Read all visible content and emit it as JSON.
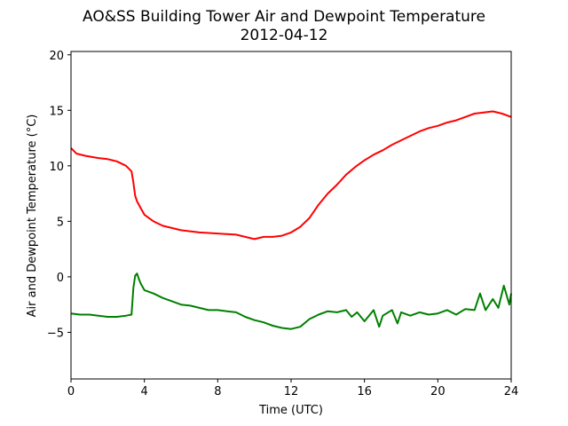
{
  "chart_data": {
    "type": "line",
    "title_line1": "AO&SS Building Tower Air and Dewpoint Temperature",
    "title_line2": "2012-04-12",
    "xlabel": "Time (UTC)",
    "ylabel": "Air and Dewpoint Temperature (°C)",
    "xlim": [
      0,
      24
    ],
    "ylim": [
      -9.2,
      20.3
    ],
    "x_ticks": [
      0,
      4,
      8,
      12,
      16,
      20,
      24
    ],
    "y_ticks": [
      -5,
      0,
      5,
      10,
      15,
      20
    ],
    "x_tick_labels": [
      "0",
      "4",
      "8",
      "12",
      "16",
      "20",
      "24"
    ],
    "y_tick_labels": [
      "−5",
      "0",
      "5",
      "10",
      "15",
      "20"
    ],
    "grid": false,
    "legend": "none",
    "series": [
      {
        "color": "#ff0000",
        "x": [
          0,
          0.3,
          0.8,
          1.5,
          2.0,
          2.5,
          3.0,
          3.3,
          3.4,
          3.5,
          3.6,
          3.8,
          4.0,
          4.5,
          5.0,
          5.5,
          6.0,
          6.5,
          7.0,
          7.5,
          8.0,
          8.5,
          9.0,
          9.5,
          10.0,
          10.5,
          11.0,
          11.5,
          12.0,
          12.5,
          13.0,
          13.5,
          14.0,
          14.5,
          15.0,
          15.5,
          16.0,
          16.5,
          17.0,
          17.5,
          18.0,
          18.5,
          19.0,
          19.5,
          20.0,
          20.5,
          21.0,
          21.5,
          22.0,
          22.5,
          23.0,
          23.5,
          24.0
        ],
        "y": [
          11.6,
          11.1,
          10.9,
          10.7,
          10.6,
          10.4,
          10.0,
          9.5,
          8.5,
          7.3,
          6.8,
          6.2,
          5.6,
          5.0,
          4.6,
          4.4,
          4.2,
          4.1,
          4.0,
          3.95,
          3.9,
          3.85,
          3.8,
          3.6,
          3.4,
          3.6,
          3.6,
          3.7,
          4.0,
          4.5,
          5.3,
          6.5,
          7.5,
          8.3,
          9.2,
          9.9,
          10.5,
          11.0,
          11.4,
          11.9,
          12.3,
          12.7,
          13.1,
          13.4,
          13.6,
          13.9,
          14.1,
          14.4,
          14.7,
          14.8,
          14.9,
          14.7,
          14.4
        ]
      },
      {
        "color": "#008000",
        "x": [
          0,
          0.5,
          1.0,
          1.5,
          2.0,
          2.5,
          3.0,
          3.3,
          3.4,
          3.5,
          3.6,
          3.7,
          3.8,
          4.0,
          4.5,
          5.0,
          5.5,
          6.0,
          6.5,
          7.0,
          7.5,
          8.0,
          8.5,
          9.0,
          9.5,
          10.0,
          10.5,
          11.0,
          11.5,
          12.0,
          12.5,
          13.0,
          13.5,
          14.0,
          14.5,
          15.0,
          15.3,
          15.6,
          16.0,
          16.5,
          16.8,
          17.0,
          17.5,
          17.8,
          18.0,
          18.5,
          19.0,
          19.5,
          20.0,
          20.5,
          21.0,
          21.5,
          22.0,
          22.3,
          22.6,
          23.0,
          23.3,
          23.6,
          23.9,
          24.0
        ],
        "y": [
          -3.3,
          -3.4,
          -3.4,
          -3.5,
          -3.6,
          -3.6,
          -3.5,
          -3.4,
          -1.0,
          0.1,
          0.3,
          -0.2,
          -0.6,
          -1.2,
          -1.5,
          -1.9,
          -2.2,
          -2.5,
          -2.6,
          -2.8,
          -3.0,
          -3.0,
          -3.1,
          -3.2,
          -3.6,
          -3.9,
          -4.1,
          -4.4,
          -4.6,
          -4.7,
          -4.5,
          -3.8,
          -3.4,
          -3.1,
          -3.2,
          -3.0,
          -3.6,
          -3.2,
          -4.0,
          -3.0,
          -4.5,
          -3.5,
          -3.0,
          -4.2,
          -3.2,
          -3.5,
          -3.2,
          -3.4,
          -3.3,
          -3.0,
          -3.4,
          -2.9,
          -3.0,
          -1.5,
          -3.0,
          -2.0,
          -2.8,
          -0.8,
          -2.5,
          -1.5
        ]
      }
    ]
  }
}
